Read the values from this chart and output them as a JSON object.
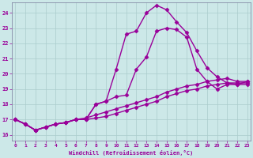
{
  "xlabel": "Windchill (Refroidissement éolien,°C)",
  "bg_color": "#cce8e8",
  "line_color": "#990099",
  "grid_color": "#aacccc",
  "x_ticks": [
    0,
    1,
    2,
    3,
    4,
    5,
    6,
    7,
    8,
    9,
    10,
    11,
    12,
    13,
    14,
    15,
    16,
    17,
    18,
    19,
    20,
    21,
    22,
    23
  ],
  "y_ticks": [
    16,
    17,
    18,
    19,
    20,
    21,
    22,
    23,
    24
  ],
  "ylim": [
    15.6,
    24.7
  ],
  "xlim": [
    -0.3,
    23.3
  ],
  "series": [
    {
      "x": [
        0,
        1,
        2,
        3,
        4,
        5,
        6,
        7,
        8,
        9,
        10,
        11,
        12,
        13,
        14,
        15,
        16,
        17,
        18,
        19,
        20,
        21,
        22,
        23
      ],
      "y": [
        17.0,
        16.7,
        16.3,
        16.5,
        16.7,
        16.8,
        17.0,
        17.0,
        18.0,
        18.2,
        18.5,
        18.6,
        20.3,
        21.1,
        22.8,
        23.0,
        22.9,
        22.4,
        20.3,
        19.5,
        19.0,
        19.3,
        19.3,
        19.5
      ],
      "marker": "D",
      "markersize": 2.5,
      "linewidth": 1.0
    },
    {
      "x": [
        0,
        1,
        2,
        3,
        4,
        5,
        6,
        7,
        8,
        9,
        10,
        11,
        12,
        13,
        14,
        15,
        16,
        17,
        18,
        19,
        20,
        21,
        22,
        23
      ],
      "y": [
        17.0,
        16.7,
        16.3,
        16.5,
        16.7,
        16.8,
        17.0,
        17.0,
        18.0,
        18.2,
        20.3,
        22.6,
        22.8,
        24.0,
        24.5,
        24.2,
        23.4,
        22.7,
        21.5,
        20.4,
        19.8,
        19.4,
        19.4,
        19.4
      ],
      "marker": "D",
      "markersize": 2.5,
      "linewidth": 1.0
    },
    {
      "x": [
        0,
        1,
        2,
        3,
        4,
        5,
        6,
        7,
        8,
        9,
        10,
        11,
        12,
        13,
        14,
        15,
        16,
        17,
        18,
        19,
        20,
        21,
        22,
        23
      ],
      "y": [
        17.0,
        16.7,
        16.3,
        16.5,
        16.7,
        16.8,
        17.0,
        17.1,
        17.3,
        17.5,
        17.7,
        17.9,
        18.1,
        18.3,
        18.5,
        18.8,
        19.0,
        19.2,
        19.3,
        19.5,
        19.6,
        19.7,
        19.5,
        19.5
      ],
      "marker": "D",
      "markersize": 2.5,
      "linewidth": 1.0
    },
    {
      "x": [
        0,
        1,
        2,
        3,
        4,
        5,
        6,
        7,
        8,
        9,
        10,
        11,
        12,
        13,
        14,
        15,
        16,
        17,
        18,
        19,
        20,
        21,
        22,
        23
      ],
      "y": [
        17.0,
        16.7,
        16.3,
        16.5,
        16.7,
        16.8,
        17.0,
        17.0,
        17.1,
        17.2,
        17.4,
        17.6,
        17.8,
        18.0,
        18.2,
        18.5,
        18.7,
        18.9,
        19.0,
        19.2,
        19.3,
        19.4,
        19.3,
        19.3
      ],
      "marker": "D",
      "markersize": 2.5,
      "linewidth": 1.0
    }
  ]
}
